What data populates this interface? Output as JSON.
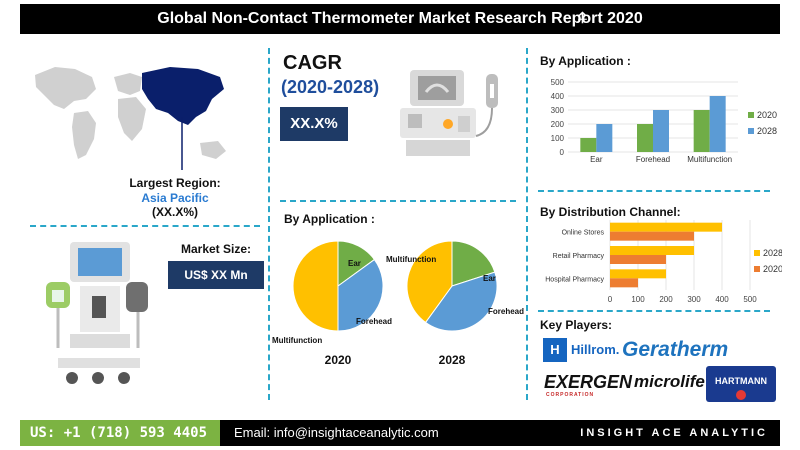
{
  "title": "Global Non-Contact Thermometer Market Research Report 2020",
  "cagr": {
    "label": "CAGR",
    "years": "(2020-2028)",
    "value": "XX.X%"
  },
  "region": {
    "label": "Largest Region:",
    "name": "Asia Pacific",
    "value": "(XX.X%)"
  },
  "market_size": {
    "label": "Market Size:",
    "value": "US$ XX Mn"
  },
  "sections": {
    "by_application_bar": "By Application :",
    "by_application_pie": "By Application :",
    "by_distribution": "By Distribution Channel:",
    "key_players": "Key Players:"
  },
  "key_players": {
    "hillrom": "Hillrom.",
    "geratherm": "Geratherm",
    "exergen": "EXERGEN",
    "exergen_sub": "CORPORATION",
    "microlife": "microlife",
    "hartmann": "HARTMANN"
  },
  "footer": {
    "phone": "US: +1 (718) 593 4405",
    "email": "Email: info@insightaceanalytic.com",
    "brand": "INSIGHT ACE ANALYTIC"
  },
  "colors": {
    "green": "#70ad47",
    "blue": "#5b9bd5",
    "yellow": "#ffc000",
    "orange": "#ed7d31",
    "navy": "#1e3a66",
    "map_highlight": "#0a1f6b",
    "map_gray": "#d0d0d0"
  },
  "chart_data": [
    {
      "type": "bar",
      "title": "By Application :",
      "categories": [
        "Ear",
        "Forehead",
        "Multifunction"
      ],
      "series": [
        {
          "name": "2020",
          "values": [
            100,
            200,
            300
          ]
        },
        {
          "name": "2028",
          "values": [
            200,
            300,
            400
          ]
        }
      ],
      "ylim": [
        0,
        500
      ],
      "yticks": [
        0,
        100,
        200,
        300,
        400,
        500
      ],
      "legend": "right"
    },
    {
      "type": "bar",
      "orientation": "horizontal",
      "title": "By Distribution Channel:",
      "categories": [
        "Online Stores",
        "Retail Pharmacy",
        "Hospital Pharmacy"
      ],
      "series": [
        {
          "name": "2028",
          "values": [
            400,
            300,
            200
          ]
        },
        {
          "name": "2020",
          "values": [
            300,
            200,
            100
          ]
        }
      ],
      "xlim": [
        0,
        500
      ],
      "xticks": [
        0,
        100,
        200,
        300,
        400,
        500
      ],
      "legend": "right"
    },
    {
      "type": "pie",
      "title": "2020",
      "labels": [
        "Ear",
        "Forehead",
        "Multifunction"
      ],
      "values": [
        15,
        35,
        50
      ]
    },
    {
      "type": "pie",
      "title": "2028",
      "labels": [
        "Ear",
        "Forehead",
        "Multifunction"
      ],
      "values": [
        20,
        40,
        40
      ]
    }
  ]
}
